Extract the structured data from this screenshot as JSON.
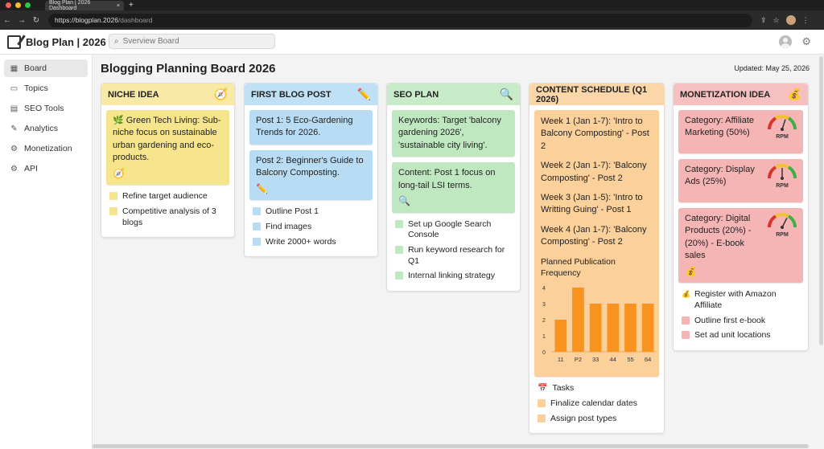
{
  "browser": {
    "tab_title": "Blog Plan | 2026 Dashboard",
    "tab_close": "×",
    "new_tab": "+",
    "url_host": "https://blogplan.2026",
    "url_path": "/dashboard"
  },
  "app": {
    "title": "Blog Plan | 2026",
    "search_placeholder": "Sverview Board"
  },
  "sidebar": {
    "items": [
      {
        "label": "Board",
        "icon": "grid-icon",
        "glyph": "▦",
        "active": true
      },
      {
        "label": "Topics",
        "icon": "folder-icon",
        "glyph": "▭"
      },
      {
        "label": "SEO Tools",
        "icon": "document-icon",
        "glyph": "▤"
      },
      {
        "label": "Analytics",
        "icon": "wrench-icon",
        "glyph": "✎"
      },
      {
        "label": "Monetization",
        "icon": "gear-icon",
        "glyph": "⚙"
      },
      {
        "label": "API",
        "icon": "gear-icon",
        "glyph": "⚙"
      }
    ]
  },
  "board": {
    "title": "Blogging Planning Board 2026",
    "updated": "Updated: May 25, 2026"
  },
  "columns": {
    "niche": {
      "title": "NICHE IDEA",
      "icon": "compass-icon",
      "color": "#f8e9a6",
      "card_color": "#f6e58c",
      "cards": [
        "🌿 Green Tech Living: Sub-niche focus on sustainable urban gardening and eco-products."
      ],
      "tasks": [
        "Refine target audience",
        "Competitive analysis of 3 blogs"
      ]
    },
    "first_post": {
      "title": "FIRST BLOG POST",
      "icon": "pencil-icon",
      "color": "#bfe0f5",
      "card_color": "#b7dcf3",
      "cards": [
        "Post 1: 5 Eco-Gardening Trends for 2026.",
        "Post 2: Beginner's Guide to Balcony Composting."
      ],
      "tasks": [
        "Outline Post 1",
        "Find images",
        "Write 2000+ words"
      ]
    },
    "seo": {
      "title": "SEO PLAN",
      "icon": "magnifier-icon",
      "color": "#c8ecc8",
      "card_color": "#bfe8c0",
      "cards": [
        "Keywords: Target 'balcony gardening 2026', 'sustainable city living'.",
        "Content: Post 1 focus on long-tail LSI terms."
      ],
      "tasks": [
        "Set up Google Search Console",
        "Run keyword research for Q1",
        "Internal linking strategy"
      ]
    },
    "schedule": {
      "title": "CONTENT SCHEDULE (Q1 2026)",
      "icon": "",
      "color": "#fbd6a9",
      "card_color": "#fcd09a",
      "weeks": [
        "Week 1 (Jan 1-7): 'Intro to Balcony Composting' - Post 2",
        "Week 2 (Jan 1-7): 'Balcony Composting' - Post 2",
        "Week 3 (Jan 1-5): 'Intro to Writting Guing' - Post 1",
        "Week 4 (Jan 1-7): 'Balcony Composting' - Post 2"
      ],
      "tasks_header": "Tasks",
      "tasks": [
        "Finalize calendar dates",
        "Assign post types"
      ]
    },
    "monetization": {
      "title": "MONETIZATION IDEA",
      "icon": "money-bag-icon",
      "color": "#f7c0c0",
      "card_color": "#f5b5b5",
      "cards": [
        {
          "text": "Category: Affiliate Marketing (50%)",
          "gauge_label": "RPM",
          "gauge_value": 0.6
        },
        {
          "text": "Category: Display Ads (25%)",
          "gauge_label": "RPM",
          "gauge_value": 0.5
        },
        {
          "text": "Category: Digital Products (20%) - (20%) - E-book sales",
          "gauge_label": "RPM",
          "gauge_value": 0.65
        }
      ],
      "tasks": [
        "Register with Amazon Affiliate",
        "Outline first e-book",
        "Set ad unit locations"
      ]
    }
  },
  "chart_data": {
    "type": "bar",
    "title": "Planned Publication Frequency",
    "categories": [
      "11",
      "P2",
      "33",
      "44",
      "55",
      "64"
    ],
    "values": [
      2,
      4,
      3,
      3,
      3,
      3
    ],
    "ylim": [
      0,
      4
    ],
    "yticks": [
      "0",
      "1",
      "2",
      "3",
      "4"
    ],
    "bar_color": "#f7931e",
    "grid": false
  }
}
